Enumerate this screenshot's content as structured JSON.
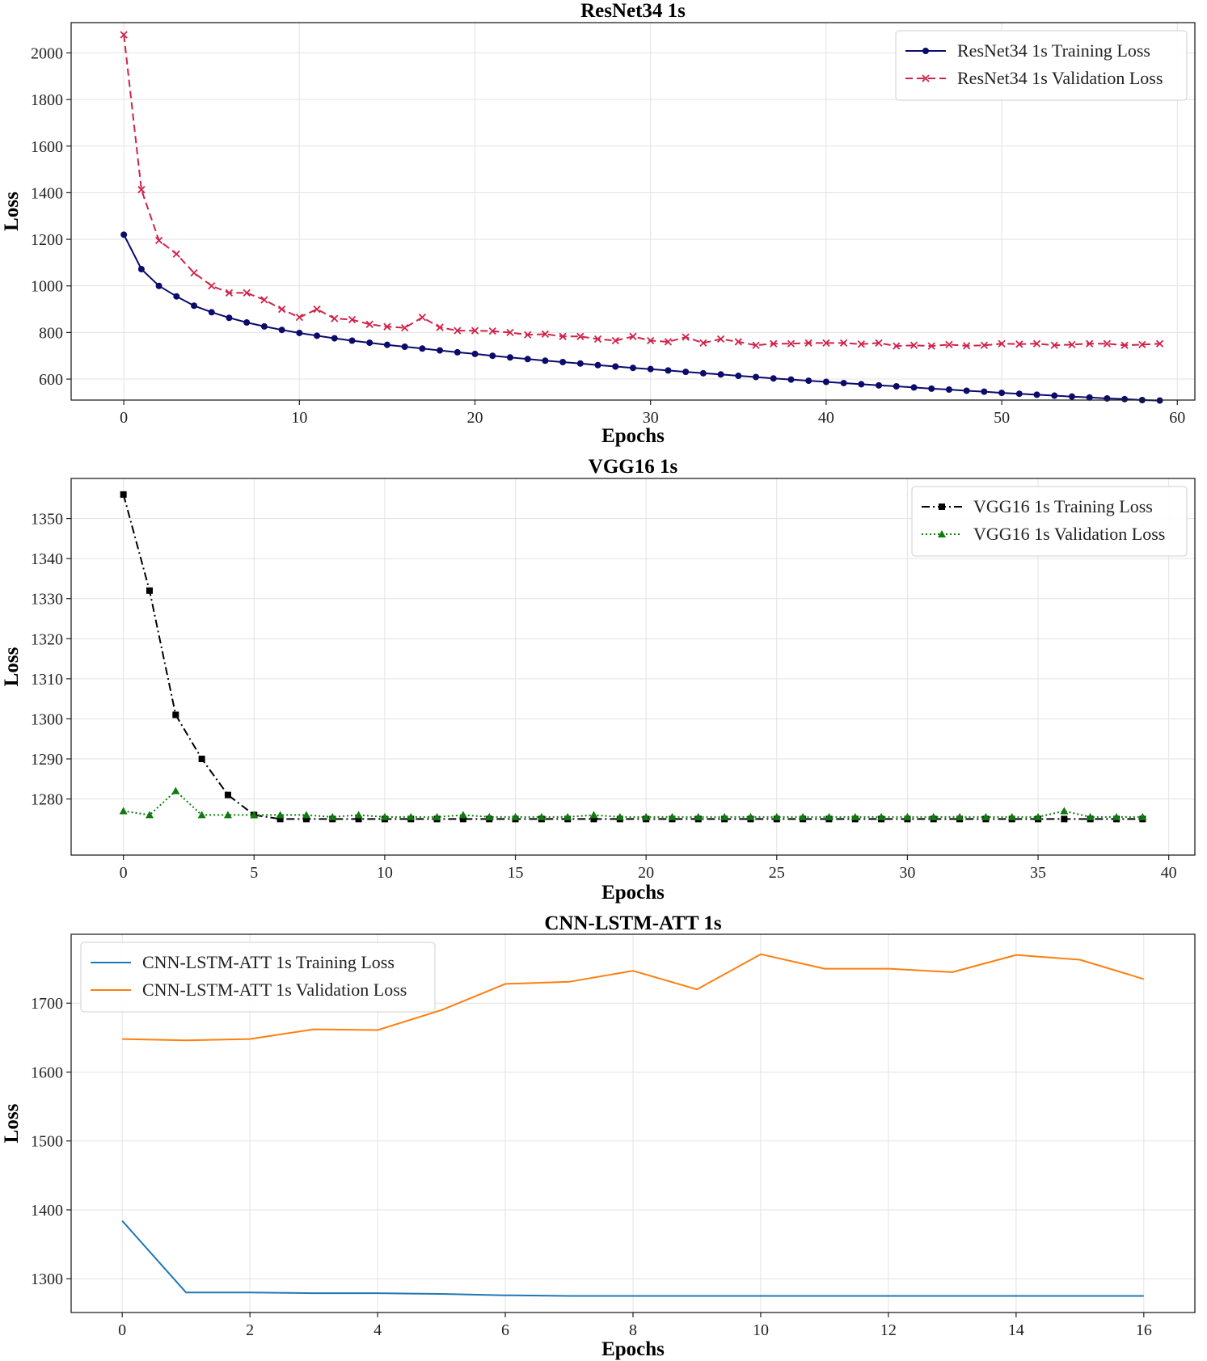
{
  "chart_data": [
    {
      "type": "line",
      "title": "ResNet34 1s",
      "xlabel": "Epochs",
      "ylabel": "Loss",
      "xlim": [
        -3,
        61
      ],
      "ylim": [
        510,
        2130
      ],
      "xticks": [
        0,
        10,
        20,
        30,
        40,
        50,
        60
      ],
      "yticks": [
        600,
        800,
        1000,
        1200,
        1400,
        1600,
        1800,
        2000
      ],
      "grid": true,
      "legend_position": "top-right",
      "series": [
        {
          "name": "ResNet34 1s Training Loss",
          "color": "#0b0b6b",
          "dash": "solid",
          "marker": "circle",
          "x": [
            0,
            1,
            2,
            3,
            4,
            5,
            6,
            7,
            8,
            9,
            10,
            11,
            12,
            13,
            14,
            15,
            16,
            17,
            18,
            19,
            20,
            21,
            22,
            23,
            24,
            25,
            26,
            27,
            28,
            29,
            30,
            31,
            32,
            33,
            34,
            35,
            36,
            37,
            38,
            39,
            40,
            41,
            42,
            43,
            44,
            45,
            46,
            47,
            48,
            49,
            50,
            51,
            52,
            53,
            54,
            55,
            56,
            57,
            58,
            59
          ],
          "values": [
            1220,
            1072,
            1000,
            955,
            915,
            887,
            863,
            843,
            826,
            811,
            798,
            786,
            775,
            765,
            756,
            747,
            739,
            731,
            723,
            715,
            708,
            700,
            693,
            686,
            679,
            673,
            667,
            660,
            654,
            648,
            643,
            637,
            631,
            625,
            620,
            614,
            609,
            603,
            598,
            593,
            588,
            583,
            578,
            573,
            569,
            564,
            559,
            555,
            550,
            546,
            541,
            537,
            533,
            529,
            525,
            521,
            517,
            514,
            510,
            508
          ]
        },
        {
          "name": "ResNet34 1s Validation Loss",
          "color": "#d0234b",
          "dash": "dashed",
          "marker": "x",
          "x": [
            0,
            1,
            2,
            3,
            4,
            5,
            6,
            7,
            8,
            9,
            10,
            11,
            12,
            13,
            14,
            15,
            16,
            17,
            18,
            19,
            20,
            21,
            22,
            23,
            24,
            25,
            26,
            27,
            28,
            29,
            30,
            31,
            32,
            33,
            34,
            35,
            36,
            37,
            38,
            39,
            40,
            41,
            42,
            43,
            44,
            45,
            46,
            47,
            48,
            49,
            50,
            51,
            52,
            53,
            54,
            55,
            56,
            57,
            58,
            59
          ],
          "values": [
            2078,
            1413,
            1195,
            1137,
            1056,
            1000,
            970,
            970,
            940,
            900,
            865,
            900,
            860,
            855,
            835,
            825,
            820,
            865,
            822,
            808,
            808,
            806,
            800,
            790,
            793,
            783,
            783,
            772,
            765,
            783,
            765,
            760,
            780,
            755,
            772,
            760,
            745,
            752,
            752,
            755,
            755,
            755,
            750,
            755,
            742,
            745,
            742,
            748,
            743,
            745,
            752,
            750,
            752,
            745,
            748,
            752,
            752,
            745,
            748,
            752
          ]
        },
        {
          "name_note": "axes"
        }
      ]
    },
    {
      "type": "line",
      "title": "VGG16 1s",
      "xlabel": "Epochs",
      "ylabel": "Loss",
      "xlim": [
        -2,
        41
      ],
      "ylim": [
        1266,
        1360
      ],
      "xticks": [
        0,
        5,
        10,
        15,
        20,
        25,
        30,
        35,
        40
      ],
      "yticks": [
        1280,
        1290,
        1300,
        1310,
        1320,
        1330,
        1340,
        1350
      ],
      "grid": true,
      "legend_position": "top-right",
      "series": [
        {
          "name": "VGG16 1s Training Loss",
          "color": "#000000",
          "dash": "dashdot",
          "marker": "square",
          "x": [
            0,
            1,
            2,
            3,
            4,
            5,
            6,
            7,
            8,
            9,
            10,
            11,
            12,
            13,
            14,
            15,
            16,
            17,
            18,
            19,
            20,
            21,
            22,
            23,
            24,
            25,
            26,
            27,
            28,
            29,
            30,
            31,
            32,
            33,
            34,
            35,
            36,
            37,
            38,
            39
          ],
          "values": [
            1356,
            1332,
            1301,
            1290,
            1281,
            1276,
            1275,
            1275,
            1275,
            1275,
            1275,
            1275,
            1275,
            1275,
            1275,
            1275,
            1275,
            1275,
            1275,
            1275,
            1275,
            1275,
            1275,
            1275,
            1275,
            1275,
            1275,
            1275,
            1275,
            1275,
            1275,
            1275,
            1275,
            1275,
            1275,
            1275,
            1275,
            1275,
            1275,
            1275
          ]
        },
        {
          "name": "VGG16 1s Validation Loss",
          "color": "#0f7a0f",
          "dash": "dotted",
          "marker": "triangle",
          "x": [
            0,
            1,
            2,
            3,
            4,
            5,
            6,
            7,
            8,
            9,
            10,
            11,
            12,
            13,
            14,
            15,
            16,
            17,
            18,
            19,
            20,
            21,
            22,
            23,
            24,
            25,
            26,
            27,
            28,
            29,
            30,
            31,
            32,
            33,
            34,
            35,
            36,
            37,
            38,
            39
          ],
          "values": [
            1277,
            1276,
            1282,
            1276,
            1276,
            1276,
            1276,
            1276,
            1275.5,
            1276,
            1275.5,
            1275.5,
            1275.5,
            1276,
            1275.5,
            1275.5,
            1275.5,
            1275.5,
            1276,
            1275.5,
            1275.5,
            1275.5,
            1275.5,
            1275.5,
            1275.5,
            1275.5,
            1275.5,
            1275.5,
            1275.5,
            1275.5,
            1275.5,
            1275.5,
            1275.5,
            1275.5,
            1275.5,
            1275.5,
            1277,
            1275.5,
            1275.5,
            1275.5
          ]
        }
      ]
    },
    {
      "type": "line",
      "title": "CNN-LSTM-ATT 1s",
      "xlabel": "Epochs",
      "ylabel": "Loss",
      "xlim": [
        -0.8,
        16.8
      ],
      "ylim": [
        1251,
        1800
      ],
      "xticks": [
        0,
        2,
        4,
        6,
        8,
        10,
        12,
        14,
        16
      ],
      "yticks": [
        1300,
        1400,
        1500,
        1600,
        1700
      ],
      "grid": true,
      "legend_position": "top-left",
      "series": [
        {
          "name": "CNN-LSTM-ATT 1s Training Loss",
          "color": "#1f77b4",
          "dash": "solid",
          "marker": "none",
          "x": [
            0,
            1,
            2,
            3,
            4,
            5,
            6,
            7,
            8,
            9,
            10,
            11,
            12,
            13,
            14,
            15,
            16
          ],
          "values": [
            1384,
            1280,
            1280,
            1279,
            1279,
            1278,
            1276,
            1275,
            1275,
            1275,
            1275,
            1275,
            1275,
            1275,
            1275,
            1275,
            1275
          ]
        },
        {
          "name": "CNN-LSTM-ATT 1s Validation Loss",
          "color": "#ff7f0e",
          "dash": "solid",
          "marker": "none",
          "x": [
            0,
            1,
            2,
            3,
            4,
            5,
            6,
            7,
            8,
            9,
            10,
            11,
            12,
            13,
            14,
            15,
            16
          ],
          "values": [
            1648,
            1646,
            1648,
            1662,
            1661,
            1690,
            1728,
            1731,
            1747,
            1720,
            1771,
            1750,
            1750,
            1745,
            1770,
            1763,
            1735
          ]
        }
      ]
    }
  ]
}
